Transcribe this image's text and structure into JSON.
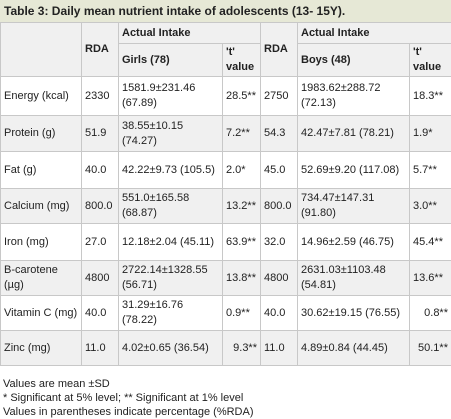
{
  "caption": {
    "label": "Table 3:",
    "text": " Daily mean nutrient intake of adolescents (13- 15Y)."
  },
  "header": {
    "rda": "RDA",
    "actual_intake": "Actual Intake",
    "girls": "Girls (78)",
    "boys": "Boys (48)",
    "t_value": "'t' value"
  },
  "rows": [
    {
      "nutrient": "Energy (kcal)",
      "rda_girls": "2330",
      "girls": "1581.9±231.46 (67.89)",
      "t_girls": "28.5**",
      "rda_boys": "2750",
      "boys": "1983.62±288.72 (72.13)",
      "t_boys": "18.3**"
    },
    {
      "nutrient": "Protein (g)",
      "rda_girls": "51.9",
      "girls": "38.55±10.15 (74.27)",
      "t_girls": "7.2**",
      "rda_boys": "54.3",
      "boys": "42.47±7.81 (78.21)",
      "t_boys": "1.9*"
    },
    {
      "nutrient": " Fat (g)",
      "rda_girls": "40.0",
      "girls": "42.22±9.73 (105.5)",
      "t_girls": "2.0*",
      "rda_boys": "45.0",
      "boys": "52.69±9.20 (117.08)",
      "t_boys": "5.7**"
    },
    {
      "nutrient": "Calcium (mg)",
      "rda_girls": "800.0",
      "girls": "551.0±165.58 (68.87)",
      "t_girls": "13.2**",
      "rda_boys": "800.0",
      "boys": "734.47±147.31 (91.80)",
      "t_boys": "3.0**"
    },
    {
      "nutrient": "Iron (mg)",
      "rda_girls": "27.0",
      "girls": "12.18±2.04 (45.11)",
      "t_girls": "63.9**",
      "rda_boys": "32.0",
      "boys": "14.96±2.59 (46.75)",
      "t_boys": "45.4**"
    },
    {
      "nutrient": "B-carotene (µg)",
      "rda_girls": "4800",
      "girls": "2722.14±1328.55 (56.71)",
      "t_girls": "13.8**",
      "rda_boys": "4800",
      "boys": "2631.03±1103.48 (54.81)",
      "t_boys": "13.6**"
    },
    {
      "nutrient": "Vitamin C (mg)",
      "rda_girls": "40.0",
      "girls": "31.29±16.76 (78.22)",
      "t_girls": "0.9**",
      "rda_boys": "40.0",
      "boys": "30.62±19.15 (76.55)",
      "t_boys": "0.8**"
    },
    {
      "nutrient": "Zinc (mg)",
      "rda_girls": "11.0",
      "girls": "4.02±0.65 (36.54)",
      "t_girls": "9.3**",
      "rda_boys": "11.0",
      "boys": "4.89±0.84 (44.45)",
      "t_boys": "50.1**"
    }
  ],
  "footnotes": [
    "Values are mean ±SD",
    "* Significant at 5% level; ** Significant at 1% level",
    "Values in parentheses indicate percentage (%RDA)"
  ],
  "colors": {
    "caption_bg": "#e6e8d6",
    "stripe_bg": "#f0f0f0",
    "border": "#c8c8c8"
  }
}
